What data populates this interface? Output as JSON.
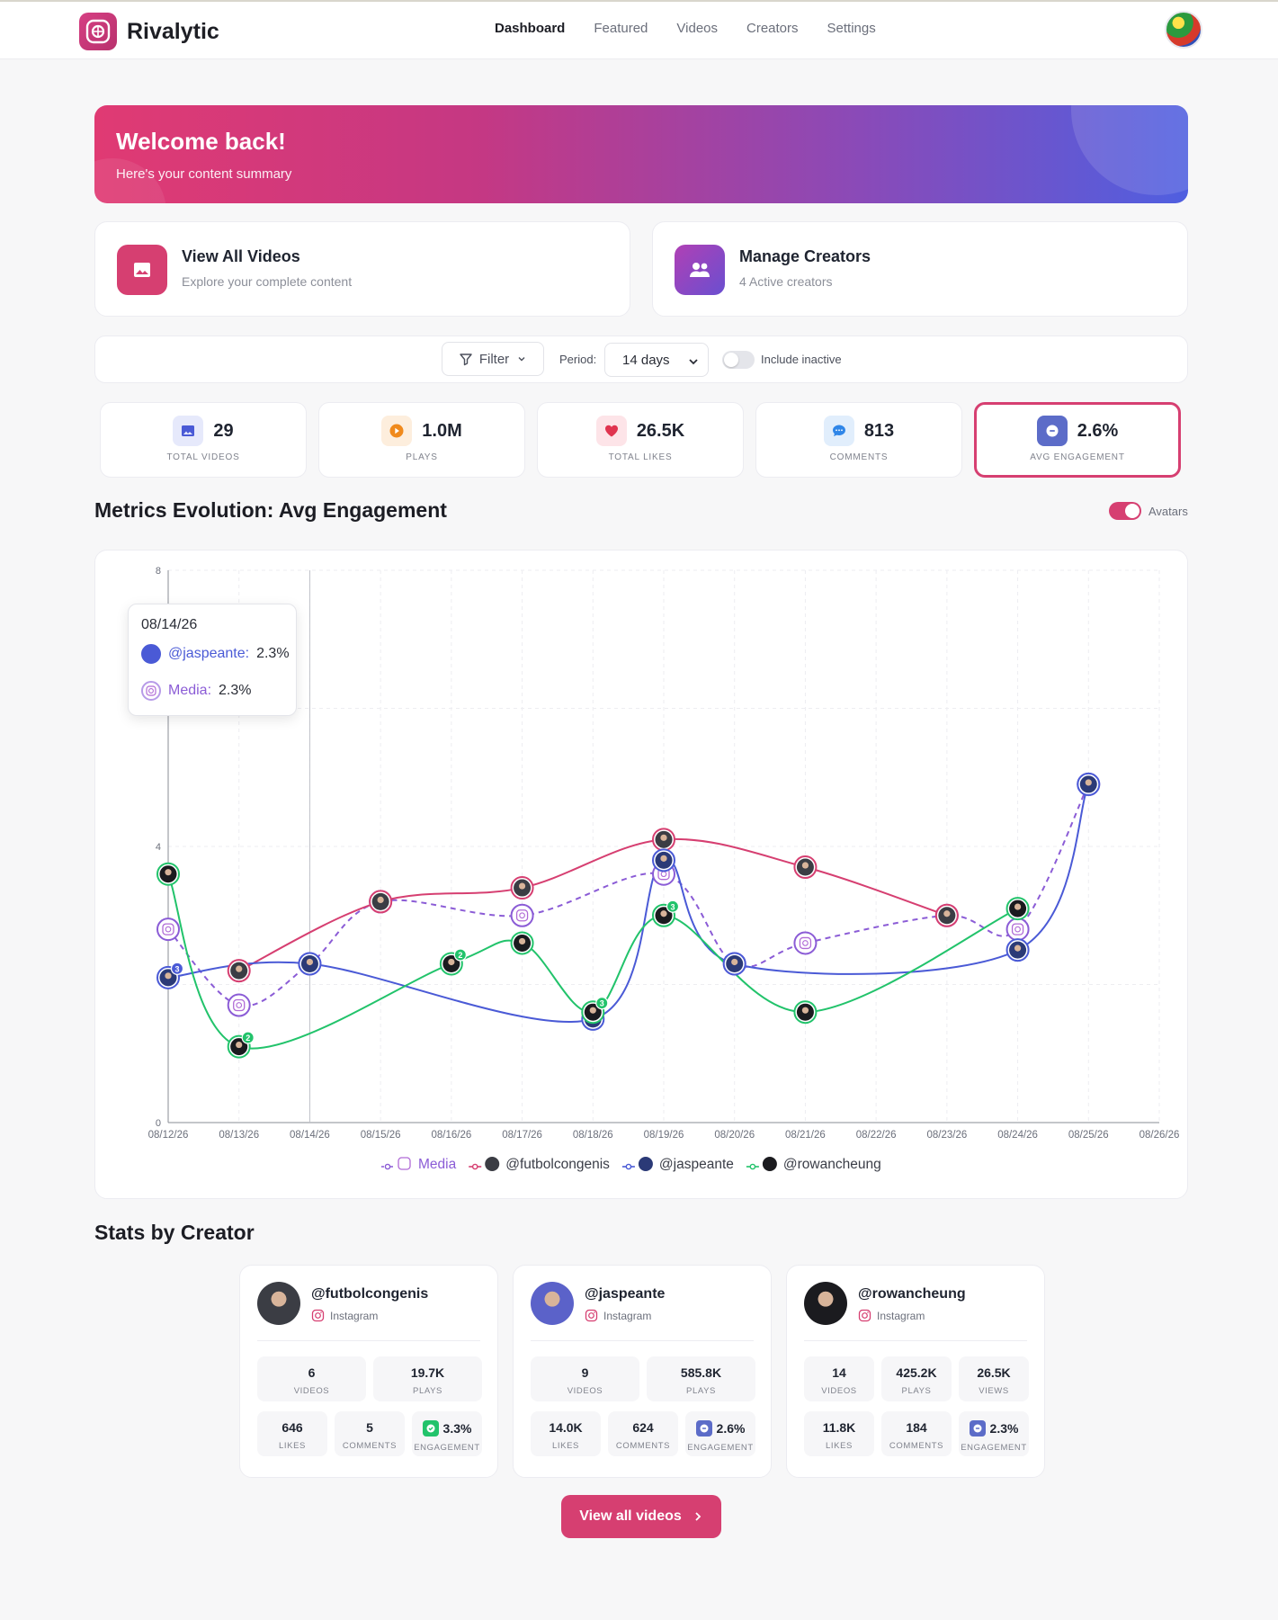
{
  "app": {
    "name": "Rivalytic"
  },
  "nav": {
    "items": [
      "Dashboard",
      "Featured",
      "Videos",
      "Creators",
      "Settings"
    ],
    "active": "Dashboard"
  },
  "banner": {
    "title": "Welcome back!",
    "subtitle": "Here's your content summary"
  },
  "actions": [
    {
      "title": "View All Videos",
      "subtitle": "Explore your complete content",
      "icon": "image-icon",
      "color": "#d63f71"
    },
    {
      "title": "Manage Creators",
      "subtitle": "4 Active creators",
      "icon": "users-icon",
      "color": "#8b45c4"
    }
  ],
  "filters": {
    "filter_label": "Filter",
    "period_label": "Period:",
    "period_value": "14 days",
    "include_inactive_label": "Include inactive",
    "include_inactive": false
  },
  "stats": [
    {
      "value": "29",
      "label": "TOTAL VIDEOS",
      "icon": "image-icon",
      "bg": "#e6e9fb",
      "fg": "#4a5ad6"
    },
    {
      "value": "1.0M",
      "label": "PLAYS",
      "icon": "play-icon",
      "bg": "#fdeedd",
      "fg": "#f08a1c"
    },
    {
      "value": "26.5K",
      "label": "TOTAL LIKES",
      "icon": "heart-icon",
      "bg": "#fde4e8",
      "fg": "#e0344f"
    },
    {
      "value": "813",
      "label": "COMMENTS",
      "icon": "comment-icon",
      "bg": "#e1eefc",
      "fg": "#2f86e8"
    },
    {
      "value": "2.6%",
      "label": "AVG ENGAGEMENT",
      "icon": "engagement-icon",
      "bg": "#5c6cc8",
      "fg": "#ffffff",
      "selected": true
    }
  ],
  "chart_section": {
    "title": "Metrics Evolution: Avg Engagement",
    "avatars_label": "Avatars",
    "avatars_on": true
  },
  "tooltip": {
    "date": "08/14/26",
    "rows": [
      {
        "name": "@jaspeante:",
        "value": "2.3%",
        "color": "#4a5ad6"
      },
      {
        "name": "Media:",
        "value": "2.3%",
        "color": "#8b5cd6"
      }
    ]
  },
  "chart_data": {
    "type": "line",
    "x": [
      "08/12/26",
      "08/13/26",
      "08/14/26",
      "08/15/26",
      "08/16/26",
      "08/17/26",
      "08/18/26",
      "08/19/26",
      "08/20/26",
      "08/21/26",
      "08/22/26",
      "08/23/26",
      "08/24/26",
      "08/25/26",
      "08/26/26"
    ],
    "ylim": [
      0,
      8
    ],
    "yticks": [
      0,
      4,
      8
    ],
    "grid": true,
    "legend_position": "bottom",
    "series": [
      {
        "name": "Media",
        "color": "#8b5cd6",
        "dashed": true,
        "values": [
          2.8,
          1.7,
          2.3,
          3.2,
          null,
          3.0,
          null,
          3.6,
          2.3,
          2.6,
          null,
          3.0,
          2.8,
          4.9,
          null
        ]
      },
      {
        "name": "@futbolcongenis",
        "color": "#d63f71",
        "dashed": false,
        "values": [
          null,
          2.2,
          null,
          3.2,
          null,
          3.4,
          null,
          4.1,
          null,
          3.7,
          null,
          3.0,
          null,
          null,
          null
        ]
      },
      {
        "name": "@jaspeante",
        "color": "#4a5ad6",
        "dashed": false,
        "values": [
          2.1,
          null,
          2.3,
          null,
          null,
          null,
          1.5,
          3.8,
          2.3,
          null,
          null,
          null,
          2.5,
          4.9,
          null
        ]
      },
      {
        "name": "@rowancheung",
        "color": "#22c36b",
        "dashed": false,
        "values": [
          3.6,
          1.1,
          null,
          null,
          2.3,
          2.6,
          1.6,
          3.0,
          null,
          1.6,
          null,
          null,
          3.1,
          null,
          null
        ]
      }
    ],
    "badges": [
      {
        "series": "@jaspeante",
        "x": "08/12/26",
        "label": "3"
      },
      {
        "series": "@rowancheung",
        "x": "08/13/26",
        "label": "2"
      },
      {
        "series": "@rowancheung",
        "x": "08/16/26",
        "label": "2"
      },
      {
        "series": "@rowancheung",
        "x": "08/18/26",
        "label": "3"
      },
      {
        "series": "@rowancheung",
        "x": "08/19/26",
        "label": "3"
      }
    ],
    "hover_x": "08/14/26"
  },
  "creators_section": {
    "title": "Stats by Creator"
  },
  "creators": [
    {
      "handle": "@futbolcongenis",
      "platform": "Instagram",
      "avatar": "#3b3d44",
      "top": [
        {
          "v": "6",
          "l": "VIDEOS"
        },
        {
          "v": "19.7K",
          "l": "PLAYS"
        }
      ],
      "bottom": [
        {
          "v": "646",
          "l": "LIKES"
        },
        {
          "v": "5",
          "l": "COMMENTS"
        },
        {
          "v": "3.3%",
          "l": "ENGAGEMENT",
          "badge": "#22c36b"
        }
      ]
    },
    {
      "handle": "@jaspeante",
      "platform": "Instagram",
      "avatar": "#5b62c9",
      "top": [
        {
          "v": "9",
          "l": "VIDEOS"
        },
        {
          "v": "585.8K",
          "l": "PLAYS"
        }
      ],
      "bottom": [
        {
          "v": "14.0K",
          "l": "LIKES"
        },
        {
          "v": "624",
          "l": "COMMENTS"
        },
        {
          "v": "2.6%",
          "l": "ENGAGEMENT",
          "badge": "#5c6cc8"
        }
      ]
    },
    {
      "handle": "@rowancheung",
      "platform": "Instagram",
      "avatar": "#1b1b1f",
      "top": [
        {
          "v": "14",
          "l": "VIDEOS"
        },
        {
          "v": "425.2K",
          "l": "PLAYS"
        },
        {
          "v": "26.5K",
          "l": "VIEWS"
        }
      ],
      "bottom": [
        {
          "v": "11.8K",
          "l": "LIKES"
        },
        {
          "v": "184",
          "l": "COMMENTS"
        },
        {
          "v": "2.3%",
          "l": "ENGAGEMENT",
          "badge": "#5c6cc8"
        }
      ]
    }
  ],
  "cta": {
    "label": "View all videos"
  }
}
